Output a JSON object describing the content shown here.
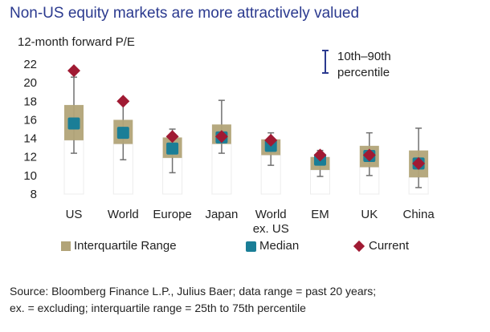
{
  "title": "Non-US equity markets are more attractively valued",
  "ylabel": "12-month forward P/E",
  "range_key": {
    "line1": "10th–90th",
    "line2": "percentile"
  },
  "legend": {
    "iqr": "Interquartile Range",
    "median": "Median",
    "current": "Current"
  },
  "source": {
    "line1": "Source: Bloomberg Finance L.P., Julius Baer; data range = past 20 years;",
    "line2": "ex. = excluding; interquartile range = 25th to 75th percentile"
  },
  "colors": {
    "iqr": "#b2a478",
    "median": "#1a7e97",
    "current": "#a01a33",
    "whisker": "#707070",
    "title": "#2b3a8f"
  },
  "chart_data": {
    "type": "box",
    "ylim": [
      8,
      22
    ],
    "yticks": [
      "8",
      "10",
      "12",
      "14",
      "16",
      "18",
      "20",
      "22"
    ],
    "categories": [
      [
        "US"
      ],
      [
        "World"
      ],
      [
        "Europe"
      ],
      [
        "Japan"
      ],
      [
        "World",
        "ex. US"
      ],
      [
        "EM"
      ],
      [
        "UK"
      ],
      [
        "China"
      ]
    ],
    "p10": [
      12.4,
      11.7,
      10.3,
      12.4,
      11.1,
      9.9,
      10.0,
      8.7
    ],
    "p90": [
      20.6,
      17.8,
      15.0,
      18.1,
      14.6,
      12.7,
      14.6,
      15.1
    ],
    "q1": [
      13.8,
      13.4,
      11.9,
      13.4,
      12.2,
      10.6,
      10.9,
      9.8
    ],
    "q3": [
      17.6,
      16.0,
      14.1,
      15.5,
      13.9,
      12.0,
      13.2,
      12.7
    ],
    "median": [
      15.6,
      14.6,
      12.9,
      14.1,
      13.2,
      11.7,
      12.1,
      11.3
    ],
    "current": [
      21.3,
      18.0,
      14.2,
      14.2,
      13.8,
      12.2,
      12.2,
      11.3
    ]
  }
}
